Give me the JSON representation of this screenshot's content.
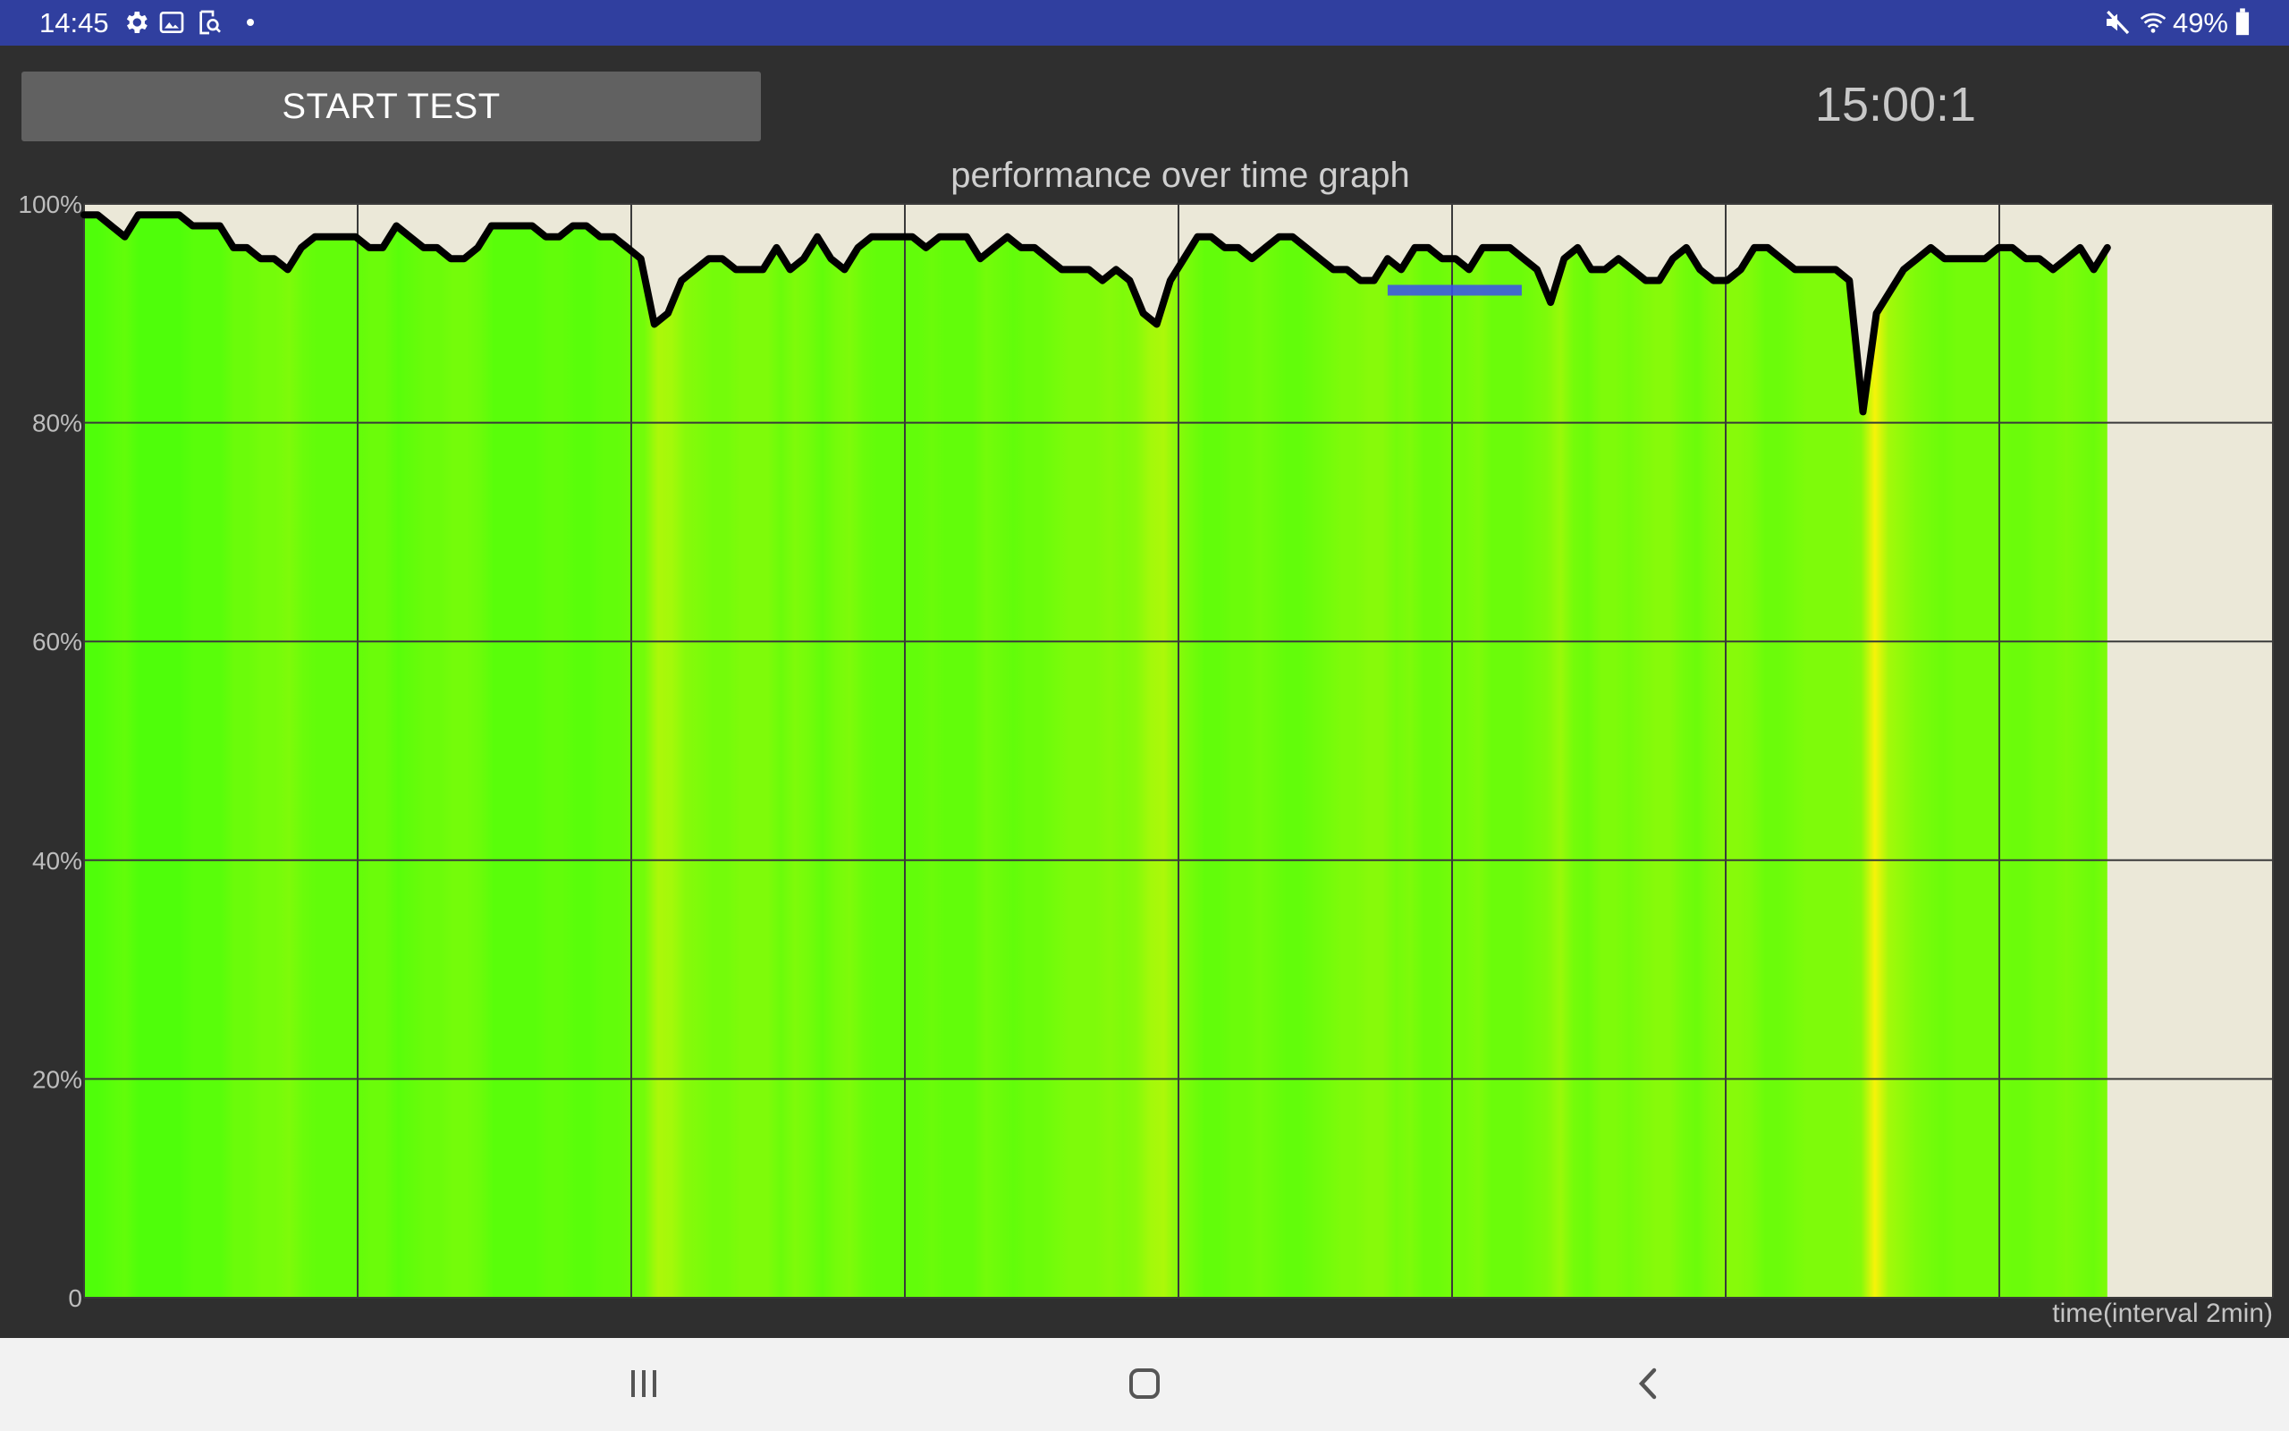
{
  "status_bar": {
    "time": "14:45",
    "battery": "49%",
    "icons": [
      "gear-icon",
      "image-icon",
      "screen-search-icon",
      "dot-icon",
      "mute-icon",
      "wifi-icon",
      "battery-icon"
    ],
    "color": "#303f9f"
  },
  "controls": {
    "start_label": "START TEST",
    "timer": "15:00:1"
  },
  "nav_bar": {
    "icons": [
      "recents-icon",
      "home-icon",
      "back-icon"
    ]
  },
  "chart_data": {
    "type": "line",
    "title": "performance over time graph",
    "xlabel": "time(interval 2min)",
    "ylabel": "",
    "ylim": [
      0,
      100
    ],
    "y_ticks": [
      "0",
      "20%",
      "40%",
      "60%",
      "80%",
      "100%"
    ],
    "x_interval_minutes": 2,
    "grid": true,
    "fill": "green heatmap under curve",
    "colors": {
      "fill": "#55ff0a",
      "fill_dip": "#dff20a",
      "line": "#000000",
      "background": "#ebe8d8",
      "marker": "#3a4ff0"
    },
    "x": [
      0,
      0.2,
      0.4,
      0.6,
      0.8,
      1.0,
      1.2,
      1.4,
      1.6,
      1.8,
      2.0,
      2.2,
      2.4,
      2.6,
      2.8,
      3.0,
      3.2,
      3.4,
      3.6,
      3.8,
      4.0,
      4.2,
      4.4,
      4.6,
      4.8,
      5.0,
      5.2,
      5.4,
      5.6,
      5.8,
      6.0,
      6.2,
      6.4,
      6.6,
      6.8,
      7.0,
      7.2,
      7.4,
      7.6,
      7.8,
      8.0,
      8.2,
      8.4,
      8.6,
      8.8,
      9.0,
      9.2,
      9.4,
      9.6,
      9.8,
      10.0,
      10.2,
      10.4,
      10.6,
      10.8,
      11.0,
      11.2,
      11.4,
      11.6,
      11.8,
      12.0,
      12.2,
      12.4,
      12.6,
      12.8,
      13.0,
      13.2,
      13.4,
      13.6,
      13.8,
      14.0,
      14.2,
      14.4,
      14.6,
      14.8,
      15.0,
      15.2,
      15.4,
      15.6,
      15.8,
      16.0,
      16.2,
      16.4,
      16.6,
      16.8,
      17.0,
      17.2,
      17.4,
      17.6,
      17.8,
      18.0,
      18.2,
      18.4,
      18.6,
      18.8,
      19.0,
      19.2,
      19.4,
      19.6,
      19.8,
      20.0,
      20.2,
      20.4,
      20.6,
      20.8,
      21.0,
      21.2,
      21.4,
      21.6,
      21.8,
      22.0,
      22.2,
      22.4,
      22.6,
      22.8,
      23.0,
      23.2,
      23.4,
      23.6,
      23.8,
      24.0,
      24.2,
      24.4,
      24.6,
      24.8,
      25.0,
      25.2,
      25.4,
      25.6,
      25.8,
      26.0,
      26.2,
      26.4,
      26.6,
      26.8,
      27.0,
      27.2,
      27.4,
      27.6,
      27.8,
      28.0,
      28.2,
      28.4,
      28.6,
      28.8,
      29.0,
      29.2,
      29.4,
      29.6,
      29.8
    ],
    "y": [
      99,
      99,
      98,
      97,
      99,
      99,
      99,
      99,
      98,
      98,
      98,
      96,
      96,
      95,
      95,
      94,
      96,
      97,
      97,
      97,
      97,
      96,
      96,
      98,
      97,
      96,
      96,
      95,
      95,
      96,
      98,
      98,
      98,
      98,
      97,
      97,
      98,
      98,
      97,
      97,
      96,
      95,
      89,
      90,
      93,
      94,
      95,
      95,
      94,
      94,
      94,
      96,
      94,
      95,
      97,
      95,
      94,
      96,
      97,
      97,
      97,
      97,
      96,
      97,
      97,
      97,
      95,
      96,
      97,
      96,
      96,
      95,
      94,
      94,
      94,
      93,
      94,
      93,
      90,
      89,
      93,
      95,
      97,
      97,
      96,
      96,
      95,
      96,
      97,
      97,
      96,
      95,
      94,
      94,
      93,
      93,
      95,
      94,
      96,
      96,
      95,
      95,
      94,
      96,
      96,
      96,
      95,
      94,
      91,
      95,
      96,
      94,
      94,
      95,
      94,
      93,
      93,
      95,
      96,
      94,
      93,
      93,
      94,
      96,
      96,
      95,
      94,
      94,
      94,
      94,
      93,
      81,
      90,
      92,
      94,
      95,
      96,
      95,
      95,
      95,
      95,
      96,
      96,
      95,
      95,
      94,
      95,
      96,
      94,
      96
    ]
  }
}
